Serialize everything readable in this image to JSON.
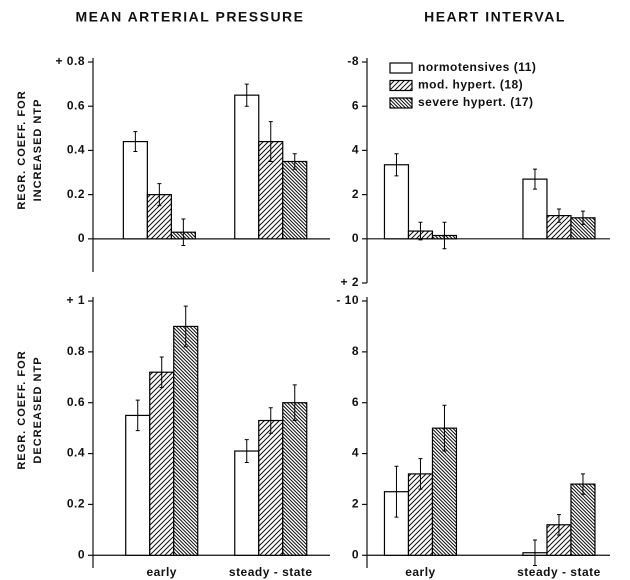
{
  "chart_data": [
    {
      "type": "bar",
      "title": "MEAN ARTERIAL PRESSURE",
      "ylabel": [
        "REGR. COEFF. FOR",
        "INCREASED NTP"
      ],
      "categories": [
        null,
        null
      ],
      "ylim": [
        -0.15,
        0.8
      ],
      "yticks": [
        0,
        0.2,
        0.4,
        0.6,
        {
          "value": 0.8,
          "label": "+ 0.8"
        }
      ],
      "series": [
        {
          "color": "#000",
          "pattern": "open",
          "values": [
            0.44,
            0.65
          ],
          "errors": [
            0.045,
            0.05
          ]
        },
        {
          "color": "#000",
          "pattern": "diagonal",
          "values": [
            0.2,
            0.44
          ],
          "errors": [
            0.05,
            0.09
          ]
        },
        {
          "color": "#000",
          "pattern": "dense-diagonal",
          "values": [
            0.03,
            0.35
          ],
          "errors": [
            0.06,
            0.035
          ]
        }
      ]
    },
    {
      "type": "bar",
      "title": "HEART INTERVAL",
      "categories": [
        null,
        null
      ],
      "ylim": [
        2,
        -8
      ],
      "yticks": [
        -8,
        {
          "value": -6,
          "label": "6"
        },
        {
          "value": -4,
          "label": "4"
        },
        {
          "value": -2,
          "label": "2"
        },
        0,
        {
          "value": 2,
          "label": "+ 2"
        }
      ],
      "series": [
        {
          "name": "normotensives (11)",
          "color": "#000",
          "pattern": "open",
          "values": [
            -3.35,
            -2.7
          ],
          "errors": [
            0.5,
            0.45
          ]
        },
        {
          "name": "mod. hypert. (18)",
          "color": "#000",
          "pattern": "diagonal",
          "values": [
            -0.35,
            -1.05
          ],
          "errors": [
            0.4,
            0.3
          ]
        },
        {
          "name": "severe hypert. (17)",
          "color": "#000",
          "pattern": "dense-diagonal",
          "values": [
            -0.15,
            -0.95
          ],
          "errors": [
            0.6,
            0.3
          ]
        }
      ]
    },
    {
      "type": "bar",
      "ylabel": [
        "REGR. COEFF. FOR",
        "DECREASED NTP"
      ],
      "categories": [
        "early",
        "steady - state"
      ],
      "ylim": [
        -0.05,
        1
      ],
      "yticks": [
        0,
        0.2,
        0.4,
        0.6,
        0.8,
        {
          "value": 1,
          "label": "+ 1"
        }
      ],
      "series": [
        {
          "color": "#000",
          "pattern": "open",
          "values": [
            0.55,
            0.41
          ],
          "errors": [
            0.06,
            0.045
          ]
        },
        {
          "color": "#000",
          "pattern": "diagonal",
          "values": [
            0.72,
            0.53
          ],
          "errors": [
            0.06,
            0.05
          ]
        },
        {
          "color": "#000",
          "pattern": "dense-diagonal",
          "values": [
            0.9,
            0.6
          ],
          "errors": [
            0.08,
            0.07
          ]
        }
      ]
    },
    {
      "type": "bar",
      "categories": [
        "early",
        "steady - state"
      ],
      "ylim": [
        0.5,
        -10
      ],
      "yticks": [
        {
          "value": -10,
          "label": "- 10"
        },
        {
          "value": -8,
          "label": "8"
        },
        {
          "value": -6,
          "label": "6"
        },
        {
          "value": -4,
          "label": "4"
        },
        {
          "value": -2,
          "label": "2"
        },
        0
      ],
      "series": [
        {
          "color": "#000",
          "pattern": "open",
          "values": [
            -2.5,
            -0.1
          ],
          "errors": [
            1.0,
            0.5
          ]
        },
        {
          "color": "#000",
          "pattern": "diagonal",
          "values": [
            -3.2,
            -1.2
          ],
          "errors": [
            0.6,
            0.4
          ]
        },
        {
          "color": "#000",
          "pattern": "dense-diagonal",
          "values": [
            -5.0,
            -2.8
          ],
          "errors": [
            0.9,
            0.4
          ]
        }
      ]
    }
  ]
}
